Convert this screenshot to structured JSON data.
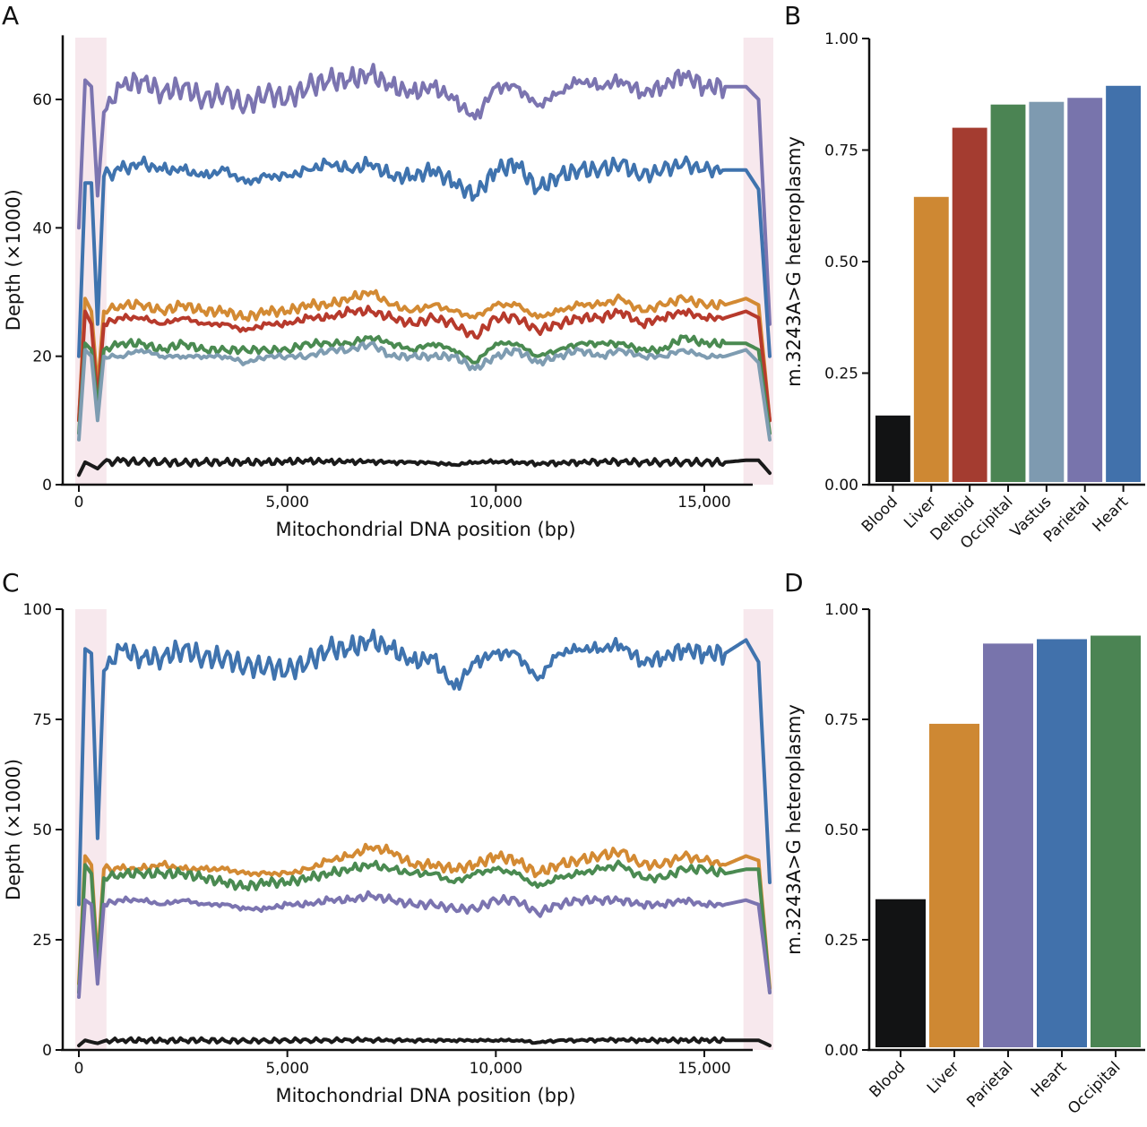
{
  "panels": {
    "A": {
      "letter": "A"
    },
    "B": {
      "letter": "B"
    },
    "C": {
      "letter": "C"
    },
    "D": {
      "letter": "D"
    }
  },
  "chart_data": [
    {
      "id": "A",
      "type": "line",
      "title": "",
      "xlabel": "Mitochondrial DNA position (bp)",
      "ylabel": "Depth (×1000)",
      "xlim": [
        -300,
        17000
      ],
      "ylim": [
        0,
        70
      ],
      "xticks": [
        0,
        5000,
        10000,
        15000
      ],
      "xtick_labels": [
        "0",
        "5,000",
        "10,000",
        "15,000"
      ],
      "yticks": [
        0,
        20,
        40,
        60
      ],
      "ytick_labels": [
        "0",
        "20",
        "40",
        "60"
      ],
      "highlight_regions": [
        [
          0,
          576
        ],
        [
          16024,
          16569
        ]
      ],
      "highlight_color": "#f6e4ea",
      "x": [
        0,
        150,
        300,
        450,
        600,
        1000,
        1500,
        2000,
        2500,
        3000,
        3500,
        4000,
        4500,
        5000,
        5500,
        6000,
        6500,
        7000,
        7500,
        8000,
        8500,
        9000,
        9500,
        10000,
        10500,
        11000,
        11500,
        12000,
        12500,
        13000,
        13500,
        14000,
        14500,
        15000,
        15500,
        16000,
        16300,
        16569
      ],
      "series": [
        {
          "name": "Parietal",
          "color": "#7b74b0",
          "values": [
            40,
            63,
            62,
            45,
            58,
            62,
            63,
            61,
            62,
            60,
            61,
            59,
            61,
            60,
            62,
            63,
            63,
            64,
            62,
            61,
            62,
            60,
            57,
            62,
            62,
            59,
            61,
            63,
            62,
            63,
            61,
            62,
            64,
            62,
            62,
            62,
            60,
            25
          ]
        },
        {
          "name": "Heart",
          "color": "#3f73ae",
          "values": [
            20,
            47,
            47,
            25,
            48,
            49,
            50,
            49,
            49,
            48,
            49,
            47,
            48,
            48,
            49,
            50,
            49,
            50,
            48,
            48,
            49,
            47,
            45,
            49,
            50,
            46,
            48,
            49,
            49,
            50,
            48,
            49,
            50,
            49,
            49,
            49,
            46,
            20
          ]
        },
        {
          "name": "Liver",
          "color": "#d38a33",
          "values": [
            10,
            29,
            27,
            15,
            27,
            28,
            28,
            27,
            28,
            27,
            27,
            26,
            27,
            27,
            28,
            28,
            29,
            30,
            28,
            27,
            28,
            27,
            26,
            28,
            28,
            26,
            27,
            28,
            28,
            29,
            27,
            28,
            29,
            28,
            28,
            29,
            28,
            10
          ]
        },
        {
          "name": "Deltoid",
          "color": "#b73a2c",
          "values": [
            10,
            27,
            25,
            13,
            25,
            26,
            26,
            25,
            26,
            25,
            25,
            24,
            25,
            25,
            26,
            26,
            27,
            27,
            26,
            25,
            26,
            25,
            23,
            26,
            26,
            24,
            25,
            26,
            26,
            27,
            25,
            26,
            27,
            26,
            26,
            27,
            26,
            10
          ]
        },
        {
          "name": "Occipital",
          "color": "#4a8a51",
          "values": [
            8,
            22,
            21,
            12,
            21,
            22,
            22,
            21,
            22,
            21,
            21,
            21,
            21,
            21,
            22,
            22,
            22,
            23,
            22,
            21,
            22,
            21,
            19,
            22,
            22,
            20,
            21,
            22,
            22,
            22,
            21,
            21,
            23,
            22,
            22,
            22,
            21,
            8
          ]
        },
        {
          "name": "Vastus",
          "color": "#7e9cb1",
          "values": [
            7,
            21,
            20,
            10,
            20,
            20,
            21,
            20,
            20,
            20,
            20,
            19,
            20,
            20,
            20,
            21,
            21,
            22,
            20,
            20,
            20,
            20,
            18,
            20,
            21,
            19,
            20,
            21,
            20,
            21,
            20,
            20,
            21,
            20,
            20,
            21,
            19,
            7
          ]
        },
        {
          "name": "Blood",
          "color": "#1a1a1a",
          "values": [
            1.5,
            3.5,
            3,
            2.5,
            3.5,
            3.6,
            3.6,
            3.5,
            3.4,
            3.5,
            3.5,
            3.5,
            3.5,
            3.6,
            3.7,
            3.6,
            3.6,
            3.6,
            3.5,
            3.5,
            3.4,
            3.1,
            3.5,
            3.6,
            3.5,
            3.3,
            3.4,
            3.5,
            3.6,
            3.6,
            3.5,
            3.5,
            3.5,
            3.5,
            3.5,
            3.8,
            3.8,
            1.8
          ]
        }
      ]
    },
    {
      "id": "B",
      "type": "bar",
      "title": "",
      "xlabel": "",
      "ylabel": "m.3243A>G heteroplasmy",
      "ylim": [
        0,
        1
      ],
      "yticks": [
        0,
        0.25,
        0.5,
        0.75,
        1.0
      ],
      "ytick_labels": [
        "0.00",
        "0.25",
        "0.50",
        "0.75",
        "1.00"
      ],
      "categories": [
        "Blood",
        "Liver",
        "Deltoid",
        "Occipital",
        "Vastus",
        "Parietal",
        "Heart"
      ],
      "values": [
        0.155,
        0.645,
        0.8,
        0.852,
        0.858,
        0.867,
        0.894
      ],
      "colors": [
        "#121314",
        "#ce8833",
        "#a43c30",
        "#4b8453",
        "#7e9ab0",
        "#7874ac",
        "#4171ab"
      ]
    },
    {
      "id": "C",
      "type": "line",
      "title": "",
      "xlabel": "Mitochondrial DNA position (bp)",
      "ylabel": "Depth (×1000)",
      "xlim": [
        -300,
        17000
      ],
      "ylim": [
        0,
        100
      ],
      "xticks": [
        0,
        5000,
        10000,
        15000
      ],
      "xtick_labels": [
        "0",
        "5,000",
        "10,000",
        "15,000"
      ],
      "yticks": [
        0,
        25,
        50,
        75,
        100
      ],
      "ytick_labels": [
        "0",
        "25",
        "50",
        "75",
        "100"
      ],
      "highlight_regions": [
        [
          0,
          576
        ],
        [
          16024,
          16569
        ]
      ],
      "highlight_color": "#f6e4ea",
      "x": [
        0,
        150,
        300,
        450,
        600,
        1000,
        1500,
        2000,
        2500,
        3000,
        3500,
        4000,
        4500,
        5000,
        5500,
        6000,
        6500,
        7000,
        7500,
        8000,
        8500,
        9000,
        9500,
        10000,
        10500,
        11000,
        11500,
        12000,
        12500,
        13000,
        13500,
        14000,
        14500,
        15000,
        15500,
        16000,
        16300,
        16569
      ],
      "series": [
        {
          "name": "Heart",
          "color": "#3f73ae",
          "values": [
            33,
            91,
            90,
            48,
            86,
            91,
            89,
            89,
            91,
            89,
            89,
            87,
            87,
            86,
            88,
            91,
            91,
            93,
            91,
            88,
            89,
            82,
            88,
            90,
            90,
            84,
            90,
            91,
            91,
            92,
            88,
            89,
            91,
            90,
            90,
            93,
            88,
            38
          ]
        },
        {
          "name": "Liver",
          "color": "#d38a33",
          "values": [
            15,
            44,
            42,
            20,
            41,
            41,
            41,
            42,
            41,
            41,
            41,
            40,
            40,
            40,
            41,
            43,
            44,
            46,
            45,
            42,
            42,
            41,
            42,
            44,
            43,
            40,
            42,
            43,
            44,
            45,
            42,
            42,
            44,
            43,
            42,
            44,
            43,
            14
          ]
        },
        {
          "name": "Occipital",
          "color": "#4a8a51",
          "values": [
            13,
            42,
            40,
            18,
            39,
            40,
            40,
            40,
            40,
            39,
            38,
            37,
            38,
            38,
            39,
            40,
            41,
            42,
            41,
            40,
            40,
            38,
            40,
            41,
            40,
            37,
            39,
            40,
            41,
            42,
            39,
            39,
            41,
            41,
            40,
            41,
            41,
            13
          ]
        },
        {
          "name": "Parietal",
          "color": "#7b74b0",
          "values": [
            12,
            34,
            33,
            15,
            33,
            34,
            34,
            33,
            34,
            33,
            33,
            32,
            32,
            33,
            33,
            34,
            34,
            35,
            34,
            33,
            33,
            32,
            32,
            34,
            34,
            31,
            33,
            34,
            34,
            34,
            33,
            33,
            34,
            33,
            33,
            34,
            33,
            13
          ]
        },
        {
          "name": "Blood",
          "color": "#1a1a1a",
          "values": [
            1,
            2.2,
            1.8,
            1.5,
            2.0,
            2.2,
            2.2,
            2.1,
            2.2,
            2.2,
            2.1,
            2.1,
            2.1,
            2.2,
            2.2,
            2.2,
            2.3,
            2.3,
            2.2,
            2.2,
            2.2,
            2.2,
            2.2,
            2.2,
            2.2,
            1.7,
            2.2,
            2.2,
            2.3,
            2.3,
            2.2,
            2.2,
            2.2,
            2.2,
            2.2,
            2.2,
            2.2,
            1.0
          ]
        }
      ]
    },
    {
      "id": "D",
      "type": "bar",
      "title": "",
      "xlabel": "",
      "ylabel": "m.3243A>G heteroplasmy",
      "ylim": [
        0,
        1
      ],
      "yticks": [
        0,
        0.25,
        0.5,
        0.75,
        1.0
      ],
      "ytick_labels": [
        "0.00",
        "0.25",
        "0.50",
        "0.75",
        "1.00"
      ],
      "categories": [
        "Blood",
        "Liver",
        "Parietal",
        "Heart",
        "Occipital"
      ],
      "values": [
        0.342,
        0.74,
        0.922,
        0.932,
        0.94
      ],
      "colors": [
        "#121314",
        "#ce8833",
        "#7874ac",
        "#4171ab",
        "#4b8453"
      ]
    }
  ]
}
